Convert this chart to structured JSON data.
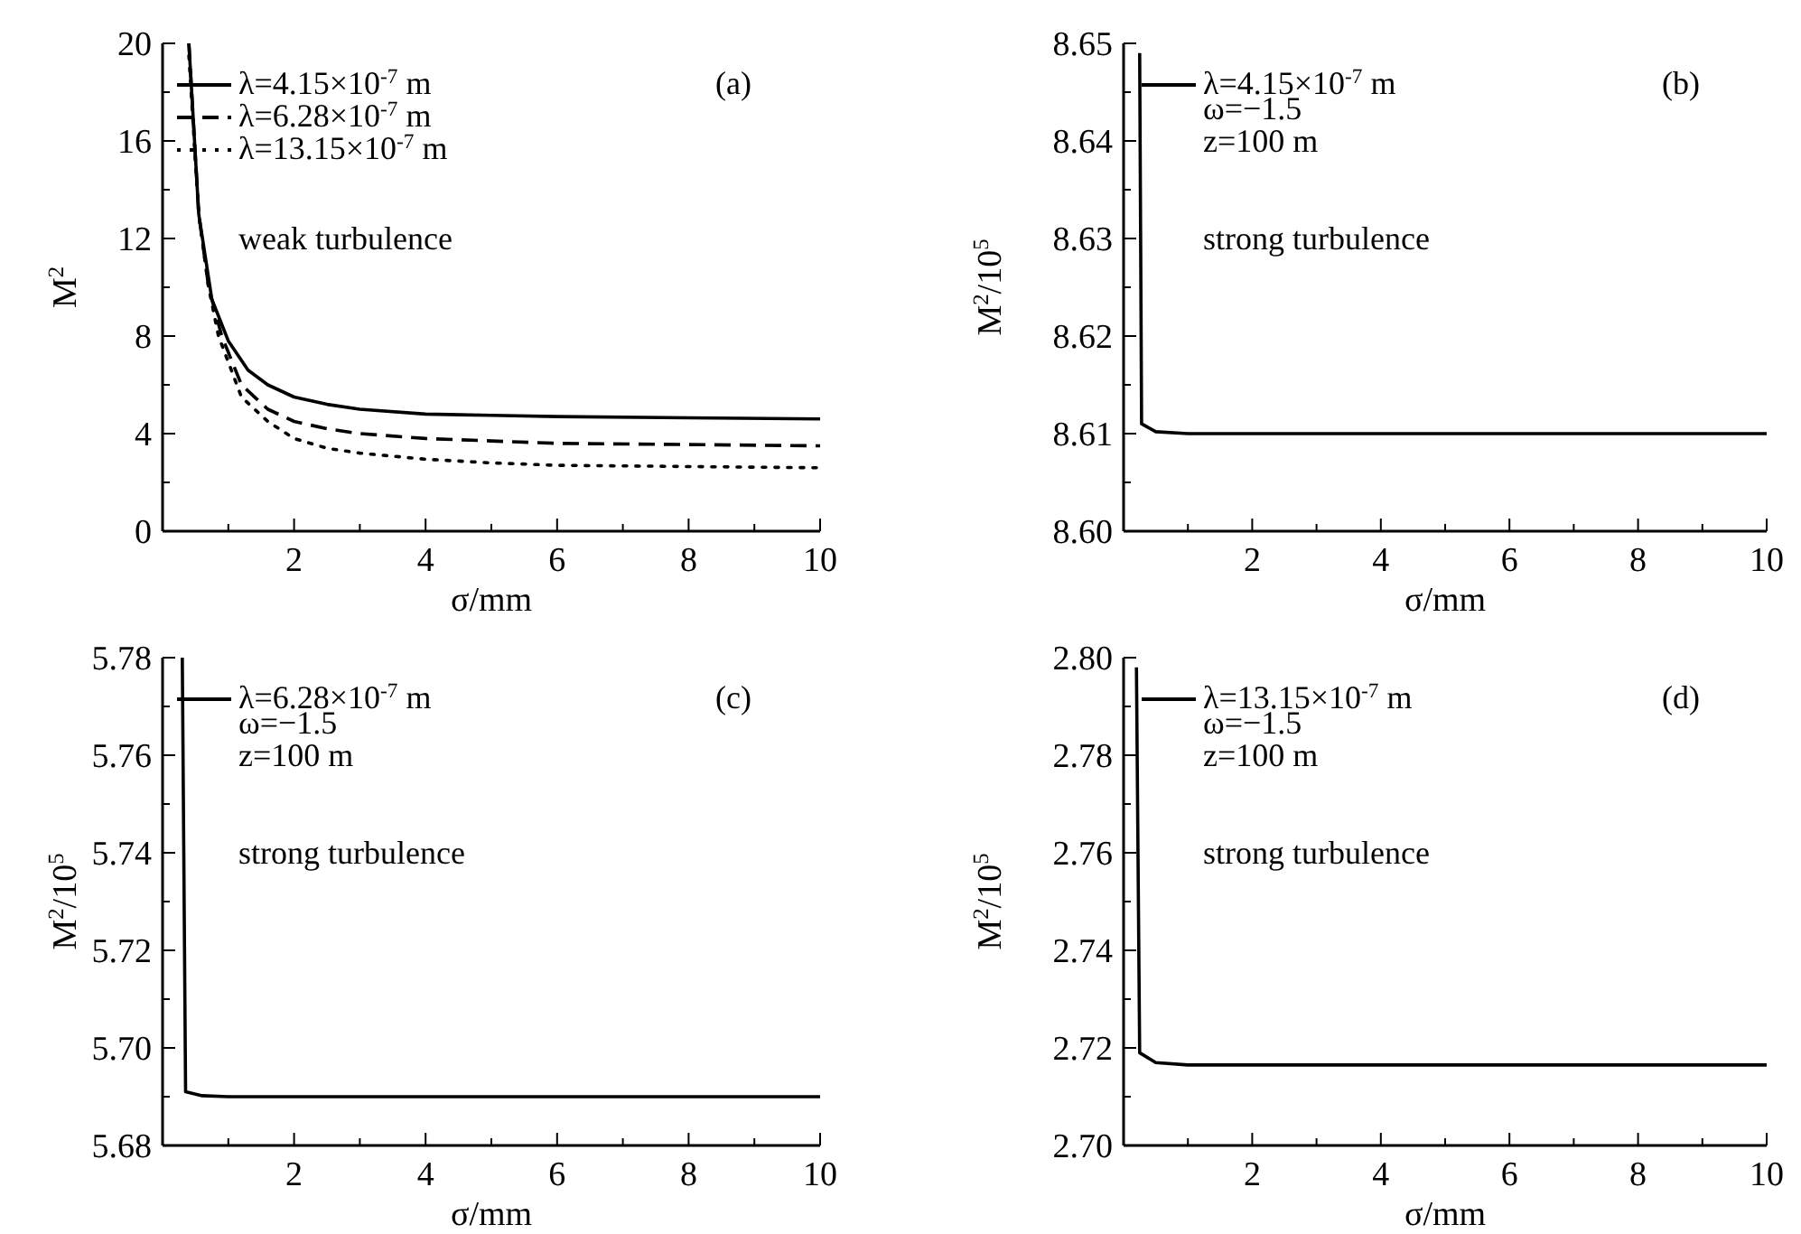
{
  "chart_data": [
    {
      "type": "line",
      "xlabel": "σ/mm",
      "ylabel": "M$^{2}$",
      "xlim": [
        0,
        10
      ],
      "ylim": [
        0,
        20
      ],
      "xticks": [
        {
          "value": 1,
          "label": null
        },
        2,
        {
          "value": 3,
          "label": null
        },
        4,
        {
          "value": 5,
          "label": null
        },
        6,
        {
          "value": 7,
          "label": null
        },
        8,
        {
          "value": 9,
          "label": null
        },
        10
      ],
      "yticks": [
        0,
        {
          "value": 2,
          "label": null
        },
        4,
        {
          "value": 6,
          "label": null
        },
        8,
        {
          "value": 10,
          "label": null
        },
        12,
        {
          "value": 14,
          "label": null
        },
        16,
        {
          "value": 18,
          "label": null
        },
        20
      ],
      "legend": "top left",
      "annotations": [
        "(a)",
        "weak turbulence"
      ],
      "series": [
        {
          "name": "λ=4.15×10$^{-7}$ m",
          "color": "#000000",
          "line_style": "solid",
          "x": [
            0.4,
            0.55,
            0.75,
            1,
            1.3,
            1.6,
            2,
            2.5,
            3,
            4,
            5,
            6,
            8,
            10
          ],
          "values": [
            20,
            13,
            9.5,
            7.8,
            6.6,
            6,
            5.5,
            5.2,
            5,
            4.8,
            4.75,
            4.7,
            4.65,
            4.6
          ]
        },
        {
          "name": "λ=6.28×10$^{-7}$ m",
          "color": "#000000",
          "line_style": "dashed",
          "x": [
            0.4,
            0.55,
            0.7,
            0.9,
            1.2,
            1.6,
            2,
            2.5,
            3,
            4,
            5,
            6,
            8,
            10
          ],
          "values": [
            20,
            13,
            10,
            8,
            6,
            5,
            4.5,
            4.2,
            4,
            3.8,
            3.7,
            3.6,
            3.55,
            3.5
          ]
        },
        {
          "name": "λ=13.15×10$^{-7}$ m",
          "color": "#000000",
          "line_style": "dotted",
          "x": [
            0.4,
            0.55,
            0.7,
            0.85,
            1.2,
            1.6,
            2,
            2.5,
            3,
            4,
            5,
            6,
            8,
            10
          ],
          "values": [
            19.5,
            13,
            10,
            8,
            5.5,
            4.5,
            3.8,
            3.4,
            3.2,
            2.95,
            2.8,
            2.7,
            2.65,
            2.6
          ]
        }
      ]
    },
    {
      "type": "line",
      "xlabel": "σ/mm",
      "ylabel": "M$^{2}$/10$^{5}$",
      "xlim": [
        0,
        10
      ],
      "ylim": [
        8.6,
        8.65
      ],
      "xticks": [
        {
          "value": 1,
          "label": null
        },
        2,
        {
          "value": 3,
          "label": null
        },
        4,
        {
          "value": 5,
          "label": null
        },
        6,
        {
          "value": 7,
          "label": null
        },
        8,
        {
          "value": 9,
          "label": null
        },
        10
      ],
      "yticks": [
        {
          "value": 8.6,
          "label": "8.60"
        },
        {
          "value": 8.605,
          "label": null
        },
        8.61,
        {
          "value": 8.615,
          "label": null
        },
        8.62,
        {
          "value": 8.625,
          "label": null
        },
        8.63,
        {
          "value": 8.635,
          "label": null
        },
        8.64,
        {
          "value": 8.645,
          "label": null
        },
        8.65
      ],
      "legend": "top left",
      "annotations": [
        "(b)",
        "ω=−1.5",
        "z=100 m",
        "strong turbulence"
      ],
      "series": [
        {
          "name": "λ=4.15×10$^{-7}$ m",
          "color": "#000000",
          "line_style": "solid",
          "x": [
            0.25,
            0.28,
            0.5,
            1,
            1.5,
            10
          ],
          "values": [
            8.649,
            8.611,
            8.6102,
            8.61,
            8.61,
            8.61
          ]
        }
      ]
    },
    {
      "type": "line",
      "xlabel": "σ/mm",
      "ylabel": "M$^{2}$/10$^{5}$",
      "xlim": [
        0,
        10
      ],
      "ylim": [
        5.68,
        5.78
      ],
      "xticks": [
        {
          "value": 1,
          "label": null
        },
        2,
        {
          "value": 3,
          "label": null
        },
        4,
        {
          "value": 5,
          "label": null
        },
        6,
        {
          "value": 7,
          "label": null
        },
        8,
        {
          "value": 9,
          "label": null
        },
        10
      ],
      "yticks": [
        5.68,
        {
          "value": 5.69,
          "label": null
        },
        {
          "value": 5.7,
          "label": "5.70"
        },
        {
          "value": 5.71,
          "label": null
        },
        5.72,
        {
          "value": 5.73,
          "label": null
        },
        5.74,
        {
          "value": 5.75,
          "label": null
        },
        5.76,
        {
          "value": 5.77,
          "label": null
        },
        5.78
      ],
      "legend": "top left",
      "annotations": [
        "(c)",
        "ω=−1.5",
        "z=100 m",
        "strong turbulence"
      ],
      "series": [
        {
          "name": "λ=6.28×10$^{-7}$ m",
          "color": "#000000",
          "line_style": "solid",
          "x": [
            0.3,
            0.35,
            0.6,
            1,
            2,
            10
          ],
          "values": [
            5.78,
            5.691,
            5.6902,
            5.69,
            5.69,
            5.69
          ]
        }
      ]
    },
    {
      "type": "line",
      "xlabel": "σ/mm",
      "ylabel": "M$^{2}$/10$^{5}$",
      "xlim": [
        0,
        10
      ],
      "ylim": [
        2.7,
        2.8
      ],
      "xticks": [
        {
          "value": 1,
          "label": null
        },
        2,
        {
          "value": 3,
          "label": null
        },
        4,
        {
          "value": 5,
          "label": null
        },
        6,
        {
          "value": 7,
          "label": null
        },
        8,
        {
          "value": 9,
          "label": null
        },
        10
      ],
      "yticks": [
        {
          "value": 2.7,
          "label": "2.70"
        },
        {
          "value": 2.71,
          "label": null
        },
        2.72,
        {
          "value": 2.73,
          "label": null
        },
        2.74,
        {
          "value": 2.75,
          "label": null
        },
        2.76,
        {
          "value": 2.77,
          "label": null
        },
        2.78,
        {
          "value": 2.79,
          "label": null
        },
        {
          "value": 2.8,
          "label": "2.80"
        }
      ],
      "legend": "top left",
      "annotations": [
        "(d)",
        "ω=−1.5",
        "z=100 m",
        "strong turbulence"
      ],
      "series": [
        {
          "name": "λ=13.15×10$^{-7}$ m",
          "color": "#000000",
          "line_style": "solid",
          "x": [
            0.2,
            0.25,
            0.5,
            1,
            1.6,
            10
          ],
          "values": [
            2.798,
            2.719,
            2.717,
            2.7165,
            2.7165,
            2.7165
          ]
        }
      ]
    }
  ]
}
